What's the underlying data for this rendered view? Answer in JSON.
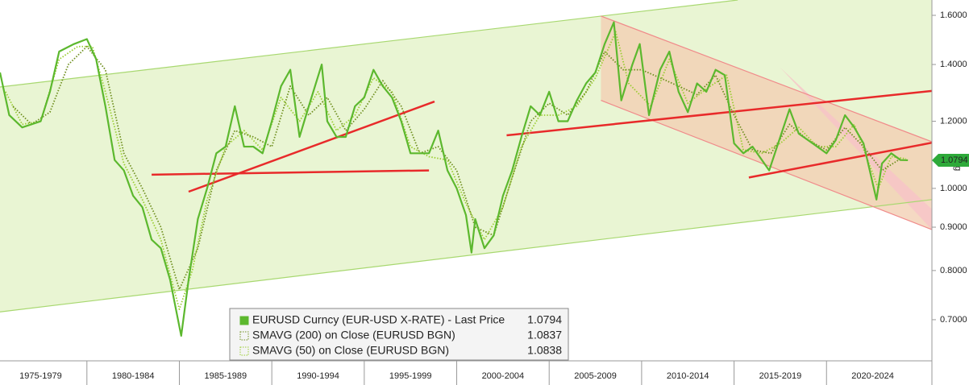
{
  "chart_data": {
    "type": "line",
    "log": true,
    "xlim": [
      1975.3,
      2025.7
    ],
    "ylim": [
      0.626,
      1.668
    ],
    "xticks": [
      {
        "value": 1975,
        "label": "1975-1979"
      },
      {
        "value": 1980,
        "label": "1980-1984"
      },
      {
        "value": 1985,
        "label": "1985-1989"
      },
      {
        "value": 1990,
        "label": "1990-1994"
      },
      {
        "value": 1995,
        "label": "1995-1999"
      },
      {
        "value": 2000,
        "label": "2000-2004"
      },
      {
        "value": 2005,
        "label": "2005-2009"
      },
      {
        "value": 2010,
        "label": "2010-2014"
      },
      {
        "value": 2015,
        "label": "2015-2019"
      },
      {
        "value": 2020,
        "label": "2020-2024"
      }
    ],
    "yticks": [
      {
        "value": 0.7,
        "label": "0.7000"
      },
      {
        "value": 0.8,
        "label": "0.8000"
      },
      {
        "value": 0.9,
        "label": "0.9000"
      },
      {
        "value": 1.0,
        "label": "1.0000"
      },
      {
        "value": 1.2,
        "label": "1.2000"
      },
      {
        "value": 1.4,
        "label": "1.4000"
      },
      {
        "value": 1.6,
        "label": "1.6000"
      }
    ],
    "scale_label": "Lg",
    "series": [
      {
        "name": "EURUSD Curncy (EUR-USD X-RATE) - Last Price",
        "color": "#5cb82e",
        "last": 1.0794,
        "x": [
          1975.3,
          1975.8,
          1976.5,
          1977.5,
          1978,
          1978.5,
          1979.3,
          1980,
          1980.5,
          1981,
          1981.5,
          1982,
          1982.5,
          1983,
          1983.5,
          1984,
          1984.5,
          1985.1,
          1985.5,
          1986,
          1986.5,
          1987,
          1987.5,
          1988,
          1988.5,
          1989,
          1989.5,
          1990,
          1990.5,
          1991,
          1991.5,
          1992,
          1992.7,
          1993,
          1993.5,
          1994,
          1994.5,
          1995,
          1995.5,
          1996,
          1996.5,
          1997,
          1997.5,
          1998,
          1998.5,
          1999,
          1999.5,
          2000,
          2000.5,
          2000.8,
          2001,
          2001.5,
          2002,
          2002.5,
          2003,
          2003.5,
          2004,
          2004.5,
          2005,
          2005.5,
          2006,
          2006.5,
          2007,
          2007.5,
          2008,
          2008.5,
          2008.9,
          2009.5,
          2009.9,
          2010.4,
          2011,
          2011.5,
          2012,
          2012.5,
          2013,
          2013.5,
          2014,
          2014.5,
          2015,
          2015.5,
          2016,
          2016.9,
          2017.5,
          2018,
          2018.5,
          2019,
          2019.5,
          2020,
          2020.5,
          2021,
          2021.5,
          2022,
          2022.7,
          2023,
          2023.5,
          2024,
          2024.4
        ],
        "values": [
          1.37,
          1.22,
          1.18,
          1.2,
          1.3,
          1.45,
          1.48,
          1.5,
          1.42,
          1.25,
          1.08,
          1.05,
          0.98,
          0.95,
          0.87,
          0.85,
          0.78,
          0.67,
          0.78,
          0.92,
          1.0,
          1.1,
          1.12,
          1.25,
          1.12,
          1.12,
          1.1,
          1.2,
          1.32,
          1.38,
          1.15,
          1.25,
          1.4,
          1.2,
          1.15,
          1.15,
          1.25,
          1.28,
          1.38,
          1.32,
          1.28,
          1.2,
          1.1,
          1.1,
          1.1,
          1.17,
          1.05,
          1.0,
          0.93,
          0.84,
          0.92,
          0.85,
          0.88,
          0.98,
          1.05,
          1.15,
          1.25,
          1.22,
          1.3,
          1.2,
          1.2,
          1.27,
          1.33,
          1.37,
          1.48,
          1.57,
          1.27,
          1.4,
          1.48,
          1.22,
          1.38,
          1.45,
          1.3,
          1.23,
          1.33,
          1.3,
          1.38,
          1.36,
          1.13,
          1.1,
          1.12,
          1.05,
          1.15,
          1.24,
          1.16,
          1.14,
          1.12,
          1.1,
          1.14,
          1.22,
          1.18,
          1.13,
          0.97,
          1.07,
          1.1,
          1.08,
          1.0794
        ]
      },
      {
        "name": "SMAVG (200)  on Close (EURUSD BGN)",
        "color": "#6f8f1f",
        "last": 1.0837,
        "x": [
          1976,
          1977,
          1978,
          1979,
          1980,
          1981,
          1982,
          1983,
          1984,
          1985,
          1986,
          1987,
          1988,
          1989,
          1990,
          1991,
          1992,
          1993,
          1994,
          1995,
          1996,
          1997,
          1998,
          1999,
          2000,
          2001,
          2002,
          2003,
          2004,
          2005,
          2006,
          2007,
          2008,
          2009,
          2010,
          2011,
          2012,
          2013,
          2014,
          2015,
          2016,
          2017,
          2018,
          2019,
          2020,
          2021,
          2022,
          2023,
          2024
        ],
        "values": [
          1.25,
          1.19,
          1.23,
          1.4,
          1.47,
          1.38,
          1.1,
          1.0,
          0.9,
          0.76,
          0.85,
          1.05,
          1.17,
          1.15,
          1.12,
          1.32,
          1.22,
          1.28,
          1.17,
          1.24,
          1.34,
          1.25,
          1.1,
          1.12,
          1.05,
          0.9,
          0.88,
          1.03,
          1.2,
          1.26,
          1.22,
          1.3,
          1.45,
          1.38,
          1.38,
          1.35,
          1.32,
          1.29,
          1.36,
          1.22,
          1.11,
          1.1,
          1.19,
          1.14,
          1.11,
          1.18,
          1.12,
          1.05,
          1.0837
        ]
      },
      {
        "name": "SMAVG (50)  on Close (EURUSD BGN)",
        "color": "#9acd32",
        "last": 1.0838,
        "x": [
          1975.6,
          1976.5,
          1977.5,
          1978.5,
          1979.5,
          1980.3,
          1981,
          1982,
          1983,
          1984,
          1985,
          1985.7,
          1986.5,
          1987.5,
          1988.5,
          1989.5,
          1990.5,
          1991.5,
          1992.5,
          1993.5,
          1994.5,
          1995.5,
          1996.5,
          1997.5,
          1998.5,
          1999.5,
          2000.5,
          2001.5,
          2002.5,
          2003.5,
          2004.5,
          2005.5,
          2006.5,
          2007.5,
          2008.6,
          2009.3,
          2010.5,
          2011.5,
          2012.5,
          2013.5,
          2014.6,
          2015.5,
          2016.5,
          2017.5,
          2018.5,
          2019.5,
          2020.5,
          2021.5,
          2022.8,
          2023.5,
          2024.3
        ],
        "values": [
          1.3,
          1.19,
          1.2,
          1.42,
          1.47,
          1.47,
          1.3,
          1.07,
          0.97,
          0.87,
          0.72,
          0.8,
          0.97,
          1.12,
          1.17,
          1.11,
          1.28,
          1.2,
          1.3,
          1.17,
          1.22,
          1.35,
          1.3,
          1.12,
          1.09,
          1.08,
          0.96,
          0.87,
          0.95,
          1.12,
          1.22,
          1.22,
          1.25,
          1.35,
          1.53,
          1.33,
          1.25,
          1.42,
          1.26,
          1.31,
          1.36,
          1.11,
          1.1,
          1.13,
          1.18,
          1.12,
          1.12,
          1.19,
          1.0,
          1.09,
          1.0838
        ]
      }
    ],
    "regions": [
      {
        "color": "#e4f3c8",
        "x": [
          1975.3,
          2015.2,
          2025.7,
          2025.7,
          1975.3
        ],
        "y": [
          1.317,
          1.668,
          1.668,
          0.97,
          0.715
        ]
      },
      {
        "color": "#f3cfb4",
        "x": [
          2007.8,
          2025.7,
          2025.7,
          2007.8
        ],
        "y": [
          1.597,
          1.135,
          0.894,
          1.27
        ]
      },
      {
        "color": "#f7c3c8",
        "x": [
          2017.5,
          2025.7,
          2025.7
        ],
        "y": [
          1.388,
          0.945,
          0.894
        ]
      }
    ],
    "trendlines": [
      {
        "color": "#a8d870",
        "x": [
          1975.3,
          2015.2
        ],
        "y": [
          1.317,
          1.668
        ]
      },
      {
        "color": "#a8d870",
        "x": [
          1975.3,
          2025.7
        ],
        "y": [
          0.715,
          0.97
        ]
      },
      {
        "color": "#f08a8a",
        "x": [
          2007.8,
          2025.7
        ],
        "y": [
          1.597,
          1.135
        ]
      },
      {
        "color": "#f08a8a",
        "x": [
          2007.8,
          2025.7
        ],
        "y": [
          1.27,
          0.894
        ]
      },
      {
        "color": "#e82a2a",
        "x": [
          1983.5,
          1998.5
        ],
        "y": [
          1.038,
          1.05
        ]
      },
      {
        "color": "#e82a2a",
        "x": [
          1985.5,
          1998.8
        ],
        "y": [
          0.991,
          1.266
        ]
      },
      {
        "color": "#e82a2a",
        "x": [
          2002.7,
          2025.7
        ],
        "y": [
          1.155,
          1.303
        ]
      },
      {
        "color": "#e82a2a",
        "x": [
          2015.8,
          2025.7
        ],
        "y": [
          1.03,
          1.132
        ]
      }
    ]
  }
}
